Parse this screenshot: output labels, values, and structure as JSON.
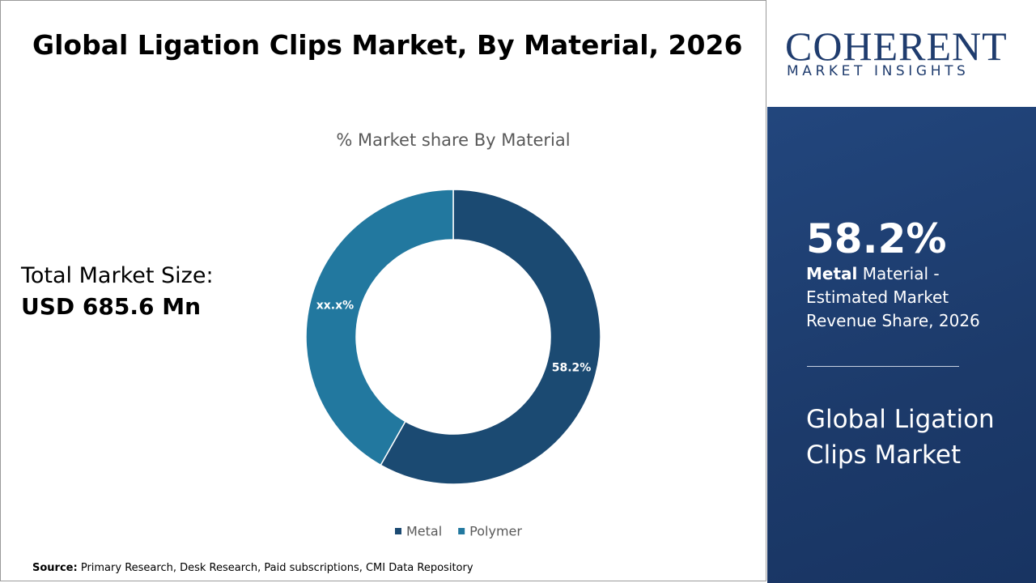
{
  "header": {
    "title": "Global Ligation Clips Market, By Material, 2026"
  },
  "logo": {
    "name": "COHERENT",
    "tagline": "MARKET INSIGHTS"
  },
  "market_size": {
    "label": "Total Market Size:",
    "value": "USD 685.6 Mn"
  },
  "chart_data": {
    "type": "pie",
    "donut": true,
    "title": "% Market share By Material",
    "categories": [
      "Metal",
      "Polymer"
    ],
    "values": [
      58.2,
      41.8
    ],
    "value_labels": [
      "58.2%",
      "xx.x%"
    ],
    "colors": [
      "#1b4a72",
      "#22789f"
    ],
    "legend": "bottom"
  },
  "side_panel": {
    "share": "58.2%",
    "segment": "Metal",
    "description": "Material - Estimated Market Revenue Share, 2026",
    "market_title": "Global Ligation Clips Market"
  },
  "source": {
    "label": "Source:",
    "text": "Primary Research, Desk Research, Paid subscriptions, CMI Data Repository"
  }
}
